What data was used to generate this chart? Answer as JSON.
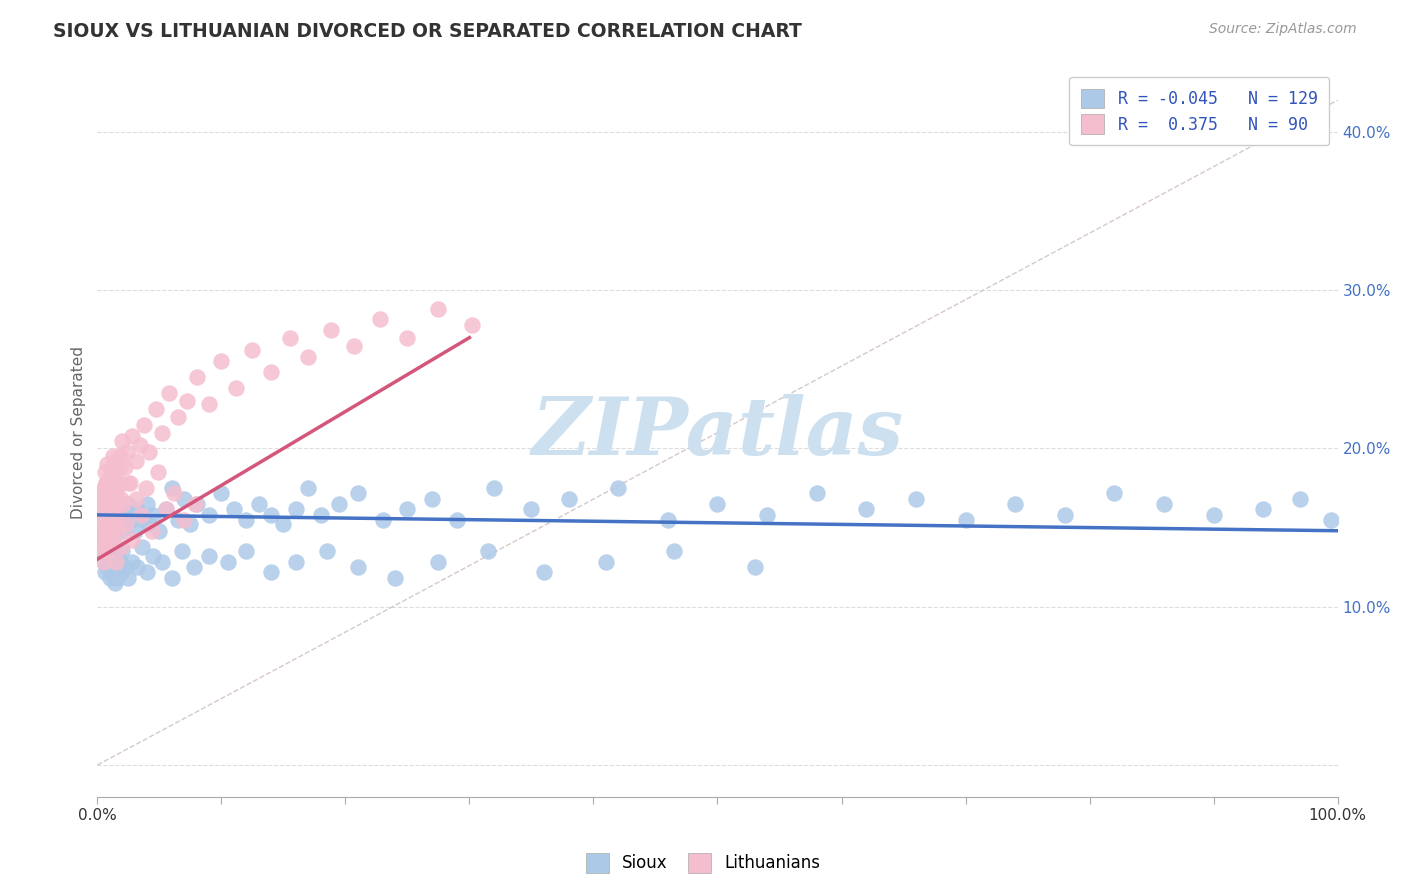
{
  "title": "SIOUX VS LITHUANIAN DIVORCED OR SEPARATED CORRELATION CHART",
  "source_text": "Source: ZipAtlas.com",
  "ylabel": "Divorced or Separated",
  "legend_bottom": [
    "Sioux",
    "Lithuanians"
  ],
  "r_sioux": -0.045,
  "n_sioux": 129,
  "r_lith": 0.375,
  "n_lith": 90,
  "color_sioux": "#adc9e8",
  "color_lith": "#f5bece",
  "color_sioux_edge": "#7aaed4",
  "color_lith_edge": "#e890aa",
  "trend_sioux_color": "#4472c4",
  "trend_lith_color": "#d4567a",
  "legend_text_color": "#3355bb",
  "watermark_color": "#cce0f0",
  "yticks": [
    0.0,
    0.1,
    0.2,
    0.3,
    0.4
  ],
  "ytick_labels": [
    "",
    "10.0%",
    "20.0%",
    "30.0%",
    "40.0%"
  ],
  "xmin": 0.0,
  "xmax": 1.0,
  "ymin": -0.02,
  "ymax": 0.44,
  "sioux_x": [
    0.002,
    0.003,
    0.003,
    0.004,
    0.004,
    0.005,
    0.005,
    0.005,
    0.006,
    0.006,
    0.006,
    0.007,
    0.007,
    0.007,
    0.008,
    0.008,
    0.009,
    0.009,
    0.01,
    0.01,
    0.011,
    0.011,
    0.012,
    0.012,
    0.013,
    0.013,
    0.014,
    0.015,
    0.015,
    0.016,
    0.017,
    0.018,
    0.019,
    0.02,
    0.022,
    0.023,
    0.025,
    0.027,
    0.03,
    0.032,
    0.035,
    0.038,
    0.04,
    0.042,
    0.045,
    0.05,
    0.055,
    0.06,
    0.065,
    0.07,
    0.075,
    0.08,
    0.09,
    0.1,
    0.11,
    0.12,
    0.13,
    0.14,
    0.15,
    0.16,
    0.17,
    0.18,
    0.195,
    0.21,
    0.23,
    0.25,
    0.27,
    0.29,
    0.32,
    0.35,
    0.38,
    0.42,
    0.46,
    0.5,
    0.54,
    0.58,
    0.62,
    0.66,
    0.7,
    0.74,
    0.78,
    0.82,
    0.86,
    0.9,
    0.94,
    0.97,
    0.995,
    0.004,
    0.005,
    0.006,
    0.007,
    0.008,
    0.009,
    0.01,
    0.011,
    0.012,
    0.013,
    0.014,
    0.015,
    0.016,
    0.017,
    0.018,
    0.019,
    0.02,
    0.022,
    0.025,
    0.028,
    0.032,
    0.036,
    0.04,
    0.045,
    0.052,
    0.06,
    0.068,
    0.078,
    0.09,
    0.105,
    0.12,
    0.14,
    0.16,
    0.185,
    0.21,
    0.24,
    0.275,
    0.315,
    0.36,
    0.41,
    0.465,
    0.53
  ],
  "sioux_y": [
    0.155,
    0.148,
    0.162,
    0.152,
    0.143,
    0.158,
    0.168,
    0.145,
    0.16,
    0.172,
    0.148,
    0.165,
    0.175,
    0.142,
    0.155,
    0.168,
    0.152,
    0.163,
    0.158,
    0.172,
    0.148,
    0.162,
    0.155,
    0.168,
    0.145,
    0.158,
    0.162,
    0.155,
    0.168,
    0.15,
    0.162,
    0.155,
    0.148,
    0.158,
    0.162,
    0.152,
    0.165,
    0.155,
    0.148,
    0.162,
    0.158,
    0.155,
    0.165,
    0.152,
    0.158,
    0.148,
    0.162,
    0.175,
    0.155,
    0.168,
    0.152,
    0.165,
    0.158,
    0.172,
    0.162,
    0.155,
    0.165,
    0.158,
    0.152,
    0.162,
    0.175,
    0.158,
    0.165,
    0.172,
    0.155,
    0.162,
    0.168,
    0.155,
    0.175,
    0.162,
    0.168,
    0.175,
    0.155,
    0.165,
    0.158,
    0.172,
    0.162,
    0.168,
    0.155,
    0.165,
    0.158,
    0.172,
    0.165,
    0.158,
    0.162,
    0.168,
    0.155,
    0.135,
    0.128,
    0.122,
    0.138,
    0.125,
    0.132,
    0.118,
    0.128,
    0.122,
    0.135,
    0.115,
    0.125,
    0.118,
    0.132,
    0.128,
    0.122,
    0.135,
    0.125,
    0.118,
    0.128,
    0.125,
    0.138,
    0.122,
    0.132,
    0.128,
    0.118,
    0.135,
    0.125,
    0.132,
    0.128,
    0.135,
    0.122,
    0.128,
    0.135,
    0.125,
    0.118,
    0.128,
    0.135,
    0.122,
    0.128,
    0.135,
    0.125
  ],
  "lith_x": [
    0.002,
    0.003,
    0.003,
    0.004,
    0.004,
    0.005,
    0.005,
    0.006,
    0.006,
    0.007,
    0.007,
    0.007,
    0.008,
    0.008,
    0.009,
    0.009,
    0.01,
    0.01,
    0.011,
    0.011,
    0.012,
    0.012,
    0.013,
    0.013,
    0.014,
    0.014,
    0.015,
    0.015,
    0.016,
    0.017,
    0.018,
    0.019,
    0.02,
    0.022,
    0.024,
    0.026,
    0.028,
    0.031,
    0.034,
    0.038,
    0.042,
    0.047,
    0.052,
    0.058,
    0.065,
    0.072,
    0.08,
    0.09,
    0.1,
    0.112,
    0.125,
    0.14,
    0.155,
    0.17,
    0.188,
    0.207,
    0.228,
    0.25,
    0.275,
    0.302,
    0.003,
    0.004,
    0.005,
    0.006,
    0.007,
    0.008,
    0.009,
    0.01,
    0.011,
    0.012,
    0.013,
    0.014,
    0.015,
    0.016,
    0.017,
    0.018,
    0.019,
    0.021,
    0.023,
    0.025,
    0.028,
    0.031,
    0.035,
    0.039,
    0.044,
    0.049,
    0.055,
    0.062,
    0.07,
    0.079
  ],
  "lith_y": [
    0.155,
    0.172,
    0.138,
    0.162,
    0.148,
    0.175,
    0.128,
    0.185,
    0.142,
    0.168,
    0.158,
    0.178,
    0.148,
    0.19,
    0.162,
    0.172,
    0.155,
    0.182,
    0.145,
    0.175,
    0.188,
    0.162,
    0.195,
    0.168,
    0.178,
    0.155,
    0.192,
    0.172,
    0.185,
    0.178,
    0.195,
    0.168,
    0.205,
    0.188,
    0.198,
    0.178,
    0.208,
    0.192,
    0.202,
    0.215,
    0.198,
    0.225,
    0.21,
    0.235,
    0.22,
    0.23,
    0.245,
    0.228,
    0.255,
    0.238,
    0.262,
    0.248,
    0.27,
    0.258,
    0.275,
    0.265,
    0.282,
    0.27,
    0.288,
    0.278,
    0.138,
    0.165,
    0.152,
    0.145,
    0.178,
    0.135,
    0.168,
    0.155,
    0.148,
    0.172,
    0.14,
    0.162,
    0.128,
    0.175,
    0.148,
    0.188,
    0.138,
    0.165,
    0.152,
    0.178,
    0.142,
    0.168,
    0.158,
    0.175,
    0.148,
    0.185,
    0.162,
    0.172,
    0.155,
    0.165
  ],
  "sioux_trend_x": [
    0.0,
    1.0
  ],
  "sioux_trend_y": [
    0.158,
    0.148
  ],
  "lith_trend_x": [
    0.0,
    0.3
  ],
  "lith_trend_y": [
    0.13,
    0.27
  ]
}
